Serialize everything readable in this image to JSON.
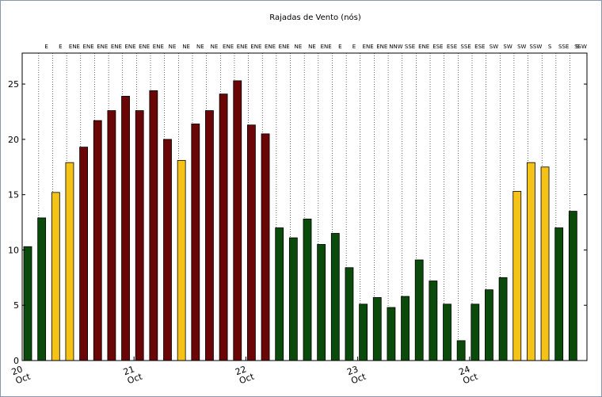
{
  "chart_data": {
    "type": "bar",
    "title": "Rajadas de Vento (nós)",
    "xlabel": "",
    "ylabel": "",
    "ylim": [
      0,
      27.8
    ],
    "yticks": [
      0,
      5,
      10,
      15,
      20,
      25
    ],
    "grid": "vertical dotted lines at each bar",
    "x_date_ticks": [
      {
        "day": "20",
        "month": "Oct",
        "index": 0
      },
      {
        "day": "21",
        "month": "Oct",
        "index": 8
      },
      {
        "day": "22",
        "month": "Oct",
        "index": 16
      },
      {
        "day": "23",
        "month": "Oct",
        "index": 24
      },
      {
        "day": "24",
        "month": "Oct",
        "index": 32
      }
    ],
    "colors": {
      "green": "#0a4a0a",
      "yellow": "#f5c218",
      "red": "#6b0606"
    },
    "bars": [
      {
        "value": 10.3,
        "color": "green",
        "direction": ""
      },
      {
        "value": 12.9,
        "color": "green",
        "direction": "E"
      },
      {
        "value": 15.2,
        "color": "yellow",
        "direction": "E"
      },
      {
        "value": 17.9,
        "color": "yellow",
        "direction": "ENE"
      },
      {
        "value": 19.3,
        "color": "red",
        "direction": "ENE"
      },
      {
        "value": 21.7,
        "color": "red",
        "direction": "ENE"
      },
      {
        "value": 22.6,
        "color": "red",
        "direction": "ENE"
      },
      {
        "value": 23.9,
        "color": "red",
        "direction": "ENE"
      },
      {
        "value": 22.6,
        "color": "red",
        "direction": "ENE"
      },
      {
        "value": 24.4,
        "color": "red",
        "direction": "ENE"
      },
      {
        "value": 20.0,
        "color": "red",
        "direction": "NE"
      },
      {
        "value": 18.1,
        "color": "yellow",
        "direction": "NE"
      },
      {
        "value": 21.4,
        "color": "red",
        "direction": "NE"
      },
      {
        "value": 22.6,
        "color": "red",
        "direction": "NE"
      },
      {
        "value": 24.1,
        "color": "red",
        "direction": "ENE"
      },
      {
        "value": 25.3,
        "color": "red",
        "direction": "ENE"
      },
      {
        "value": 21.3,
        "color": "red",
        "direction": "ENE"
      },
      {
        "value": 20.5,
        "color": "red",
        "direction": "ENE"
      },
      {
        "value": 12.0,
        "color": "green",
        "direction": "ENE"
      },
      {
        "value": 11.1,
        "color": "green",
        "direction": "NE"
      },
      {
        "value": 12.8,
        "color": "green",
        "direction": "NE"
      },
      {
        "value": 10.5,
        "color": "green",
        "direction": "ENE"
      },
      {
        "value": 11.5,
        "color": "green",
        "direction": "E"
      },
      {
        "value": 8.4,
        "color": "green",
        "direction": "E"
      },
      {
        "value": 5.1,
        "color": "green",
        "direction": "ENE"
      },
      {
        "value": 5.7,
        "color": "green",
        "direction": "ENE"
      },
      {
        "value": 4.8,
        "color": "green",
        "direction": "NNW"
      },
      {
        "value": 5.8,
        "color": "green",
        "direction": "SSE"
      },
      {
        "value": 9.1,
        "color": "green",
        "direction": "ENE"
      },
      {
        "value": 7.2,
        "color": "green",
        "direction": "ESE"
      },
      {
        "value": 5.1,
        "color": "green",
        "direction": "ESE"
      },
      {
        "value": 1.8,
        "color": "green",
        "direction": "SSE"
      },
      {
        "value": 5.1,
        "color": "green",
        "direction": "ESE"
      },
      {
        "value": 6.4,
        "color": "green",
        "direction": "SW"
      },
      {
        "value": 7.5,
        "color": "green",
        "direction": "SW"
      },
      {
        "value": 15.3,
        "color": "yellow",
        "direction": "SW"
      },
      {
        "value": 17.9,
        "color": "yellow",
        "direction": "SSW"
      },
      {
        "value": 17.5,
        "color": "yellow",
        "direction": "S"
      },
      {
        "value": 12.0,
        "color": "green",
        "direction": "SSE"
      },
      {
        "value": 13.5,
        "color": "green",
        "direction": "S"
      }
    ],
    "extra_top_labels": [
      "SSW"
    ]
  }
}
